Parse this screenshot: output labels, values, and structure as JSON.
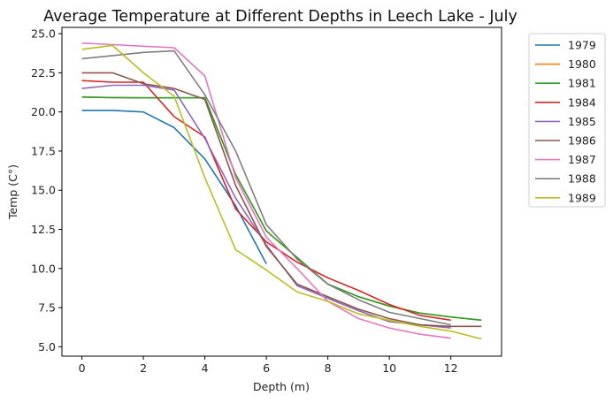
{
  "chart_data": {
    "type": "line",
    "title": "Average Temperature at Different Depths in Leech Lake - July",
    "xlabel": "Depth (m)",
    "ylabel": "Temp (C°)",
    "xlim": [
      -0.65,
      13.65
    ],
    "ylim": [
      4.4,
      25.4
    ],
    "xticks": [
      0,
      2,
      4,
      6,
      8,
      10,
      12
    ],
    "yticks": [
      5.0,
      7.5,
      10.0,
      12.5,
      15.0,
      17.5,
      20.0,
      22.5,
      25.0
    ],
    "xtick_labels": [
      "0",
      "2",
      "4",
      "6",
      "8",
      "10",
      "12"
    ],
    "ytick_labels": [
      "5.0",
      "7.5",
      "10.0",
      "12.5",
      "15.0",
      "17.5",
      "20.0",
      "22.5",
      "25.0"
    ],
    "legend_position": "upper right, outside plot",
    "grid": false,
    "series": [
      {
        "name": "1979",
        "color": "#1f77b4",
        "x": [
          0,
          1,
          2,
          3,
          4,
          5,
          6
        ],
        "y": [
          20.1,
          20.1,
          20.0,
          19.0,
          17.0,
          14.0,
          10.3
        ]
      },
      {
        "name": "1980",
        "color": "#ff7f0e",
        "x": [
          0,
          1,
          2,
          3,
          4,
          5,
          6,
          7,
          8,
          9,
          10,
          11,
          12,
          13
        ],
        "y": [
          20.95,
          20.92,
          20.9,
          20.9,
          20.9,
          16.0,
          12.4,
          10.7,
          9.0,
          8.2,
          7.6,
          7.15,
          6.9,
          6.7
        ]
      },
      {
        "name": "1981",
        "color": "#2ca02c",
        "x": [
          0,
          1,
          2,
          3,
          4,
          5,
          6,
          7,
          8,
          9,
          10,
          11,
          12,
          13
        ],
        "y": [
          20.95,
          20.92,
          20.9,
          20.9,
          20.9,
          16.0,
          12.4,
          10.7,
          9.0,
          8.2,
          7.6,
          7.15,
          6.9,
          6.7
        ]
      },
      {
        "name": "1984",
        "color": "#d62728",
        "x": [
          0,
          1,
          2,
          3,
          4,
          5,
          6,
          7,
          8,
          9,
          10,
          11,
          12
        ],
        "y": [
          22.0,
          21.9,
          21.9,
          19.7,
          18.4,
          13.8,
          11.7,
          10.4,
          9.4,
          8.6,
          7.7,
          7.0,
          6.7
        ]
      },
      {
        "name": "1985",
        "color": "#9467bd",
        "x": [
          0,
          1,
          2,
          3,
          4,
          5,
          6,
          7,
          8,
          9,
          10,
          11,
          12
        ],
        "y": [
          21.5,
          21.7,
          21.7,
          21.4,
          18.3,
          14.5,
          11.5,
          8.9,
          8.1,
          7.3,
          6.6,
          6.4,
          6.2
        ]
      },
      {
        "name": "1986",
        "color": "#8c564b",
        "x": [
          0,
          1,
          2,
          3,
          4,
          5,
          6,
          7,
          8,
          9,
          10,
          11,
          12,
          13
        ],
        "y": [
          22.5,
          22.5,
          21.8,
          21.5,
          20.8,
          15.3,
          11.4,
          9.0,
          8.2,
          7.4,
          6.8,
          6.4,
          6.3,
          6.3
        ]
      },
      {
        "name": "1987",
        "color": "#e377c2",
        "x": [
          0,
          1,
          2,
          3,
          4,
          5,
          6,
          7,
          8,
          9,
          10,
          11,
          12
        ],
        "y": [
          24.4,
          24.3,
          24.2,
          24.1,
          22.3,
          15.8,
          12.0,
          10.0,
          7.9,
          6.8,
          6.2,
          5.8,
          5.55
        ]
      },
      {
        "name": "1988",
        "color": "#7f7f7f",
        "x": [
          0,
          1,
          2,
          3,
          4,
          5,
          6,
          7,
          8,
          9,
          10,
          11,
          12
        ],
        "y": [
          23.4,
          23.6,
          23.8,
          23.9,
          21.1,
          17.5,
          12.8,
          10.6,
          9.0,
          8.0,
          7.2,
          6.8,
          6.4
        ]
      },
      {
        "name": "1989",
        "color": "#bcbd22",
        "x": [
          0,
          1,
          2,
          3,
          4,
          5,
          6,
          7,
          8,
          9,
          10,
          11,
          12,
          13
        ],
        "y": [
          24.0,
          24.25,
          22.5,
          21.0,
          15.8,
          11.2,
          9.9,
          8.5,
          7.9,
          7.1,
          6.7,
          6.3,
          6.0,
          5.5
        ]
      }
    ]
  }
}
